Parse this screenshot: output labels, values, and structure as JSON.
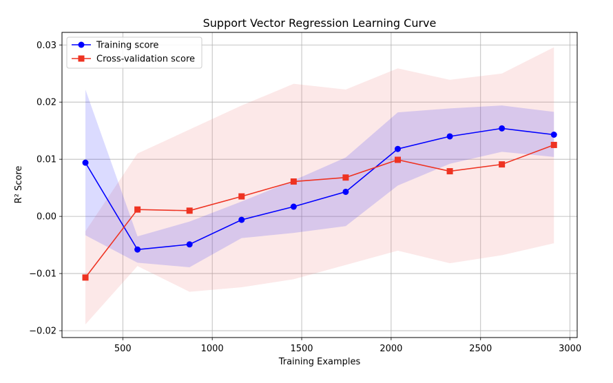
{
  "chart_data": {
    "type": "line",
    "title": "Support Vector Regression Learning Curve",
    "xlabel": "Training Examples",
    "ylabel": "R² Score",
    "xlim": [
      160,
      3040
    ],
    "ylim": [
      -0.0212,
      0.0322
    ],
    "xticks": [
      500,
      1000,
      1500,
      2000,
      2500,
      3000
    ],
    "xtick_labels": [
      "500",
      "1000",
      "1500",
      "2000",
      "2500",
      "3000"
    ],
    "yticks": [
      -0.02,
      -0.01,
      0.0,
      0.01,
      0.02,
      0.03
    ],
    "ytick_labels": [
      "−0.02",
      "−0.01",
      "0.00",
      "0.01",
      "0.02",
      "0.03"
    ],
    "grid": true,
    "legend_position": "upper-left",
    "x": [
      291,
      582,
      873,
      1164,
      1455,
      1746,
      2037,
      2328,
      2619,
      2910
    ],
    "series": [
      {
        "name": "Training score",
        "color": "#0000ff",
        "band_color": "#0000ff",
        "marker": "circle",
        "values": [
          0.0094,
          -0.0058,
          -0.0049,
          -0.0006,
          0.0017,
          0.0043,
          0.0118,
          0.014,
          0.0154,
          0.0143
        ],
        "band_lower": [
          -0.0033,
          -0.0081,
          -0.0089,
          -0.0038,
          -0.0029,
          -0.0017,
          0.0054,
          0.0092,
          0.0113,
          0.0104
        ],
        "band_upper": [
          0.0222,
          -0.0035,
          -0.0009,
          0.0026,
          0.0063,
          0.0103,
          0.0182,
          0.0189,
          0.0194,
          0.0183
        ]
      },
      {
        "name": "Cross-validation score",
        "color": "#ee3322",
        "band_color": "#f08080",
        "marker": "square",
        "values": [
          -0.0107,
          0.0012,
          0.001,
          0.0035,
          0.0061,
          0.0068,
          0.0099,
          0.0079,
          0.0091,
          0.0125
        ],
        "band_lower": [
          -0.0189,
          -0.0087,
          -0.0132,
          -0.0124,
          -0.011,
          -0.0085,
          -0.006,
          -0.0082,
          -0.0068,
          -0.0047
        ],
        "band_upper": [
          -0.0026,
          0.011,
          0.0152,
          0.0194,
          0.0232,
          0.0222,
          0.0259,
          0.0239,
          0.025,
          0.0296
        ]
      }
    ]
  }
}
